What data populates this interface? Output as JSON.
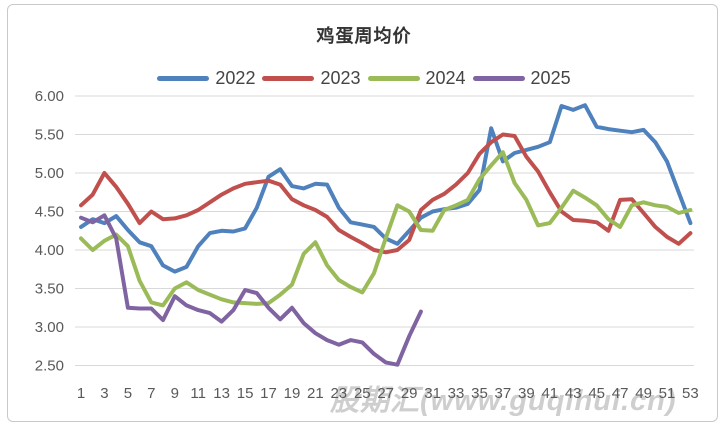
{
  "title": "鸡蛋周均价",
  "watermark": "股期汇(www.guqihui.cn)",
  "colors": {
    "series_2022": "#4F81BD",
    "series_2023": "#C0504D",
    "series_2024": "#9BBB59",
    "series_2025": "#8064A2",
    "gridline": "#D9D9D9",
    "tick_text": "#595959",
    "title_text": "#333333",
    "watermark_text": "#C3C3C3"
  },
  "chart_data": {
    "type": "line",
    "title": "鸡蛋周均价",
    "xlabel": "",
    "ylabel": "",
    "x_unit": "week 1-53",
    "x_tick_labels": [
      "1",
      "3",
      "5",
      "7",
      "9",
      "11",
      "13",
      "15",
      "17",
      "19",
      "21",
      "23",
      "25",
      "27",
      "29",
      "31",
      "33",
      "35",
      "37",
      "39",
      "41",
      "43",
      "45",
      "47",
      "49",
      "51",
      "53"
    ],
    "y_tick_labels": [
      "6.00",
      "5.50",
      "5.00",
      "4.50",
      "4.00",
      "3.50",
      "3.00",
      "2.50"
    ],
    "ylim": [
      2.5,
      6.0
    ],
    "xlim": [
      1,
      53
    ],
    "grid": true,
    "legend_position": "top",
    "series": [
      {
        "name": "2022",
        "color": "#4F81BD",
        "values": [
          4.3,
          4.4,
          4.35,
          4.44,
          4.26,
          4.1,
          4.05,
          3.8,
          3.72,
          3.78,
          4.05,
          4.22,
          4.25,
          4.24,
          4.28,
          4.55,
          4.95,
          5.05,
          4.83,
          4.8,
          4.86,
          4.85,
          4.55,
          4.36,
          4.33,
          4.3,
          4.15,
          4.08,
          4.25,
          4.42,
          4.5,
          4.53,
          4.55,
          4.6,
          4.78,
          5.58,
          5.15,
          5.26,
          5.3,
          5.34,
          5.4,
          5.87,
          5.82,
          5.88,
          5.6,
          5.57,
          5.55,
          5.53,
          5.56,
          5.4,
          5.15,
          4.75,
          4.35
        ]
      },
      {
        "name": "2023",
        "color": "#C0504D",
        "values": [
          4.58,
          4.72,
          5.0,
          4.82,
          4.6,
          4.35,
          4.5,
          4.4,
          4.41,
          4.45,
          4.52,
          4.62,
          4.72,
          4.8,
          4.86,
          4.88,
          4.9,
          4.85,
          4.66,
          4.58,
          4.52,
          4.43,
          4.26,
          4.17,
          4.09,
          4.0,
          3.97,
          4.0,
          4.13,
          4.52,
          4.65,
          4.73,
          4.85,
          5.0,
          5.25,
          5.4,
          5.5,
          5.48,
          5.21,
          5.02,
          4.75,
          4.5,
          4.39,
          4.38,
          4.36,
          4.25,
          4.65,
          4.66,
          4.48,
          4.3,
          4.17,
          4.08,
          4.22
        ]
      },
      {
        "name": "2024",
        "color": "#9BBB59",
        "values": [
          4.15,
          4.0,
          4.12,
          4.2,
          4.05,
          3.6,
          3.32,
          3.28,
          3.5,
          3.58,
          3.48,
          3.42,
          3.36,
          3.32,
          3.31,
          3.3,
          3.31,
          3.42,
          3.55,
          3.95,
          4.1,
          3.8,
          3.61,
          3.52,
          3.45,
          3.7,
          4.15,
          4.58,
          4.5,
          4.26,
          4.25,
          4.52,
          4.58,
          4.65,
          4.92,
          5.1,
          5.27,
          4.87,
          4.65,
          4.32,
          4.35,
          4.55,
          4.77,
          4.68,
          4.58,
          4.4,
          4.3,
          4.58,
          4.62,
          4.58,
          4.56,
          4.48,
          4.52
        ]
      },
      {
        "name": "2025",
        "color": "#8064A2",
        "values": [
          4.42,
          4.36,
          4.45,
          4.15,
          3.25,
          3.24,
          3.24,
          3.09,
          3.4,
          3.28,
          3.22,
          3.18,
          3.07,
          3.22,
          3.48,
          3.44,
          3.25,
          3.1,
          3.25,
          3.05,
          2.92,
          2.83,
          2.77,
          2.83,
          2.8,
          2.65,
          2.54,
          2.51,
          2.88,
          3.2
        ]
      }
    ]
  }
}
